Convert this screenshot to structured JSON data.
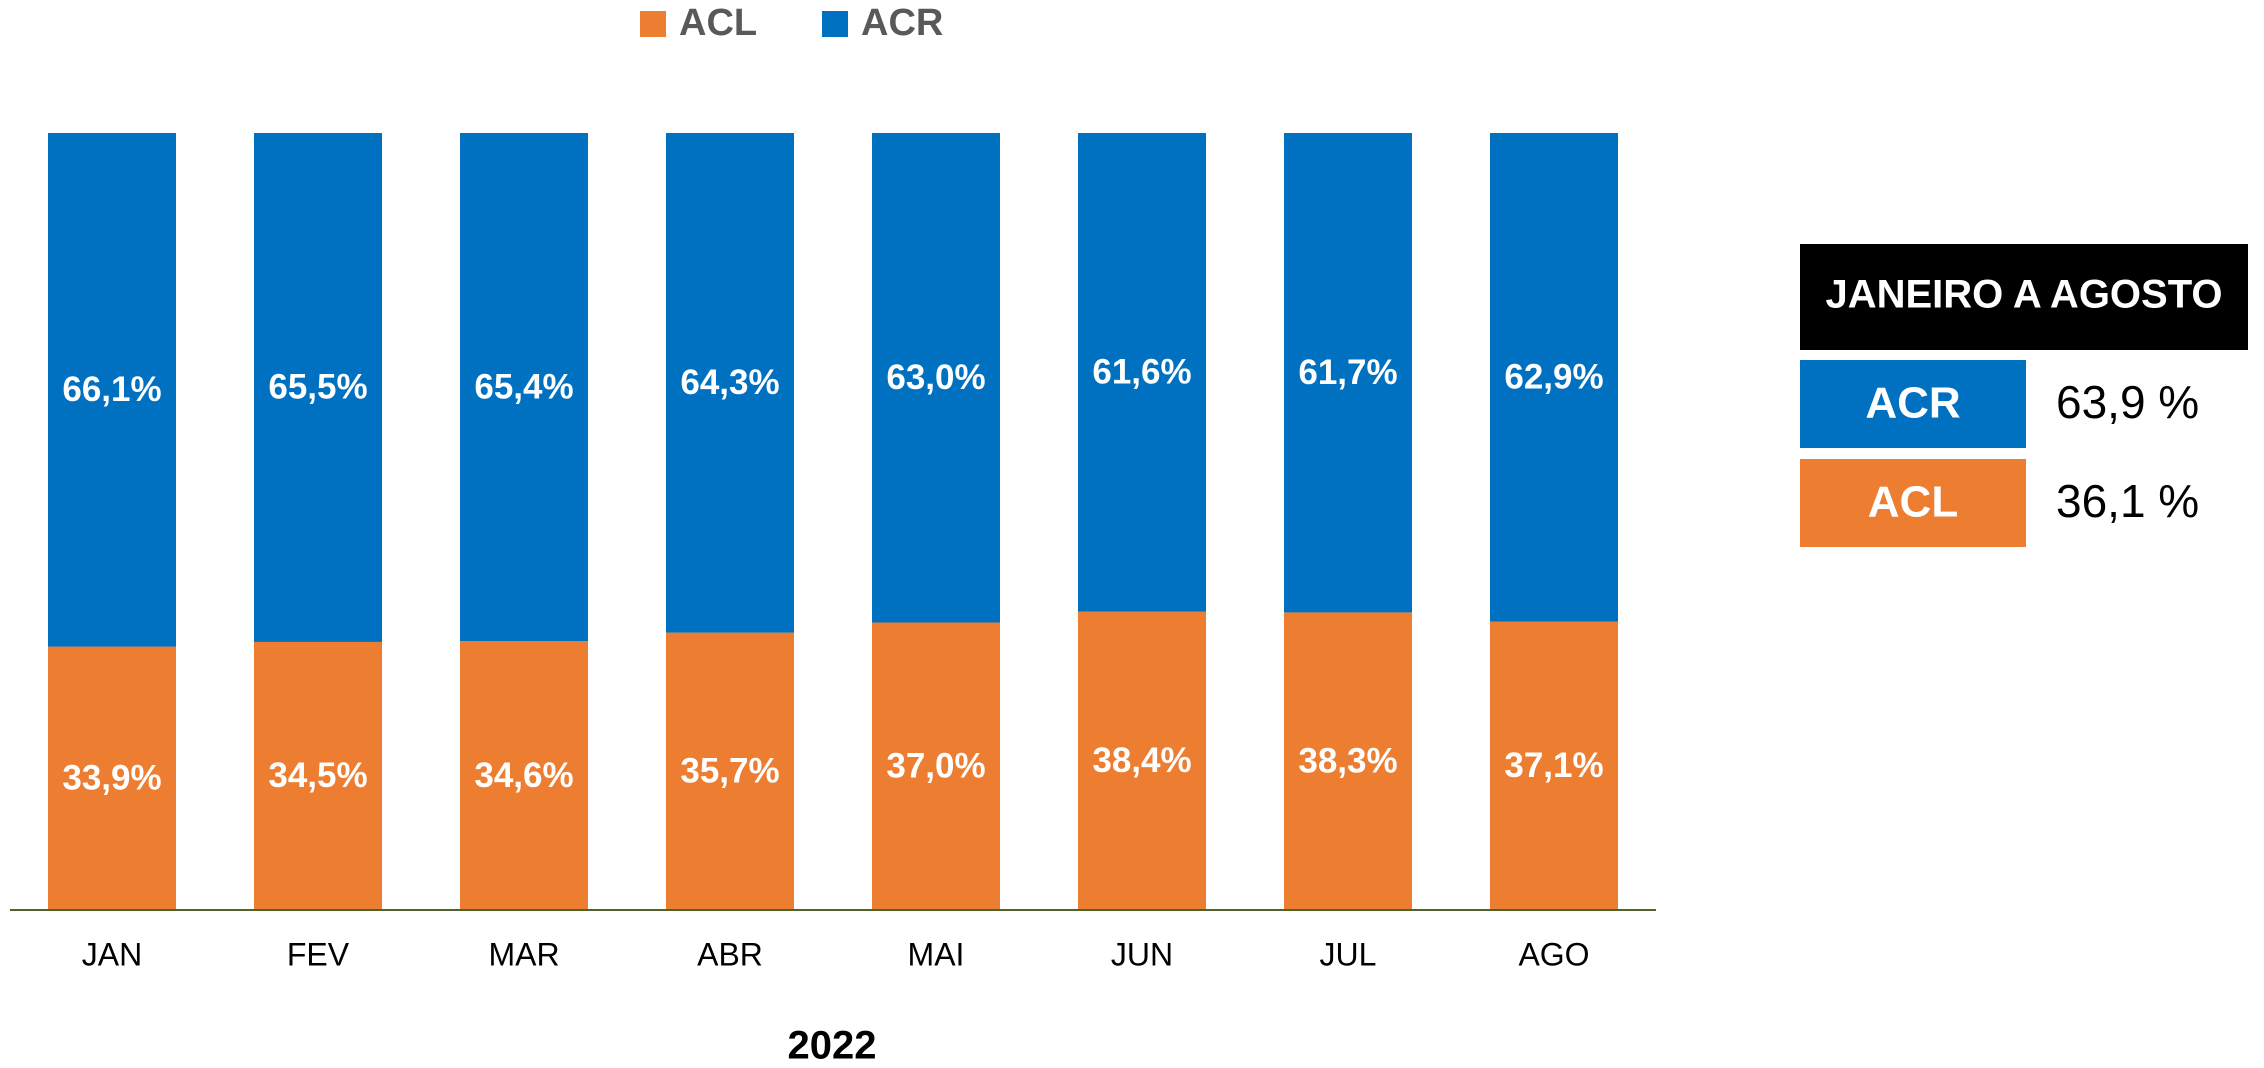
{
  "chart_data": {
    "type": "bar",
    "stacked": true,
    "categories": [
      "JAN",
      "FEV",
      "MAR",
      "ABR",
      "MAI",
      "JUN",
      "JUL",
      "AGO"
    ],
    "x_label": "2022",
    "ylim": [
      0,
      100
    ],
    "legend": "top",
    "series": [
      {
        "name": "ACL",
        "color": "#ED7D31",
        "values": [
          33.9,
          34.5,
          34.6,
          35.7,
          37.0,
          38.4,
          38.3,
          37.1
        ],
        "value_labels": [
          "33,9%",
          "34,5%",
          "34,6%",
          "35,7%",
          "37,0%",
          "38,4%",
          "38,3%",
          "37,1%"
        ]
      },
      {
        "name": "ACR",
        "color": "#0070C0",
        "values": [
          66.1,
          65.5,
          65.4,
          64.3,
          63.0,
          61.6,
          61.7,
          62.9
        ],
        "value_labels": [
          "66,1%",
          "65,5%",
          "65,4%",
          "64,3%",
          "63,0%",
          "61,6%",
          "61,7%",
          "62,9%"
        ]
      }
    ],
    "summary": {
      "title": "JANEIRO A AGOSTO",
      "rows": [
        {
          "name": "ACR",
          "color": "#0070C0",
          "value": 63.9,
          "value_label": "63,9 %"
        },
        {
          "name": "ACL",
          "color": "#ED7D31",
          "value": 36.1,
          "value_label": "36,1 %"
        }
      ]
    }
  }
}
